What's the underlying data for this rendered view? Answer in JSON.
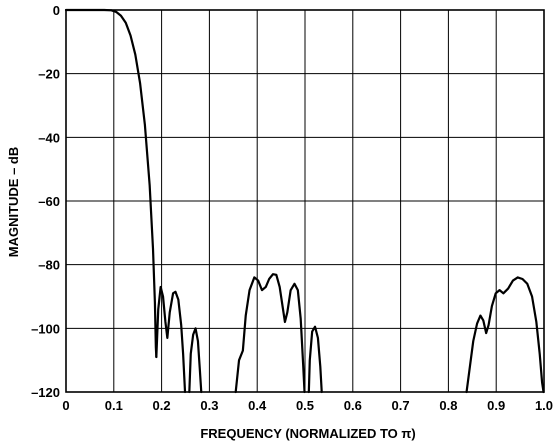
{
  "chart_data": {
    "type": "line",
    "title": "",
    "xlabel": "FREQUENCY (NORMALIZED TO π)",
    "ylabel": "MAGNITUDE – dB",
    "xlim": [
      0,
      1.0
    ],
    "ylim": [
      -120,
      0
    ],
    "xticks": [
      0,
      0.1,
      0.2,
      0.3,
      0.4,
      0.5,
      0.6,
      0.7,
      0.8,
      0.9,
      1.0
    ],
    "xtick_labels": [
      "0",
      "0.1",
      "0.2",
      "0.3",
      "0.4",
      "0.5",
      "0.6",
      "0.7",
      "0.8",
      "0.9",
      "1.0"
    ],
    "yticks": [
      0,
      -20,
      -40,
      -60,
      -80,
      -100,
      -120
    ],
    "ytick_labels": [
      "0",
      "–20",
      "–40",
      "–60",
      "–80",
      "–100",
      "–120"
    ],
    "grid": true,
    "series": [
      {
        "segments": [
          [
            [
              0,
              0
            ],
            [
              0.08,
              0
            ],
            [
              0.095,
              -0.1
            ],
            [
              0.105,
              -0.6
            ],
            [
              0.115,
              -1.8
            ],
            [
              0.125,
              -4
            ],
            [
              0.135,
              -8
            ],
            [
              0.145,
              -14
            ],
            [
              0.155,
              -23
            ],
            [
              0.165,
              -36
            ],
            [
              0.175,
              -55
            ],
            [
              0.182,
              -75
            ],
            [
              0.186,
              -92
            ],
            [
              0.188,
              -106
            ],
            [
              0.189,
              -109
            ]
          ],
          [
            [
              0.189,
              -109
            ],
            [
              0.193,
              -94
            ],
            [
              0.198,
              -87
            ],
            [
              0.203,
              -90
            ],
            [
              0.208,
              -98
            ],
            [
              0.212,
              -103
            ],
            [
              0.217,
              -95
            ],
            [
              0.224,
              -89
            ],
            [
              0.229,
              -88.5
            ],
            [
              0.235,
              -91
            ],
            [
              0.241,
              -99
            ],
            [
              0.245,
              -108
            ],
            [
              0.249,
              -120
            ]
          ],
          [
            [
              0.258,
              -120
            ],
            [
              0.261,
              -108
            ],
            [
              0.266,
              -102
            ],
            [
              0.271,
              -100
            ],
            [
              0.276,
              -104
            ],
            [
              0.28,
              -113
            ],
            [
              0.283,
              -120
            ]
          ],
          [
            [
              0.355,
              -120
            ],
            [
              0.362,
              -110
            ],
            [
              0.37,
              -107
            ],
            [
              0.376,
              -96
            ],
            [
              0.384,
              -88
            ],
            [
              0.394,
              -84
            ],
            [
              0.402,
              -85
            ],
            [
              0.41,
              -88
            ],
            [
              0.418,
              -87
            ],
            [
              0.425,
              -84.5
            ],
            [
              0.433,
              -83
            ],
            [
              0.44,
              -83.2
            ],
            [
              0.447,
              -87
            ],
            [
              0.453,
              -93
            ],
            [
              0.458,
              -98
            ],
            [
              0.463,
              -95
            ],
            [
              0.47,
              -88
            ],
            [
              0.478,
              -86
            ],
            [
              0.485,
              -88
            ],
            [
              0.491,
              -97
            ],
            [
              0.496,
              -111
            ],
            [
              0.499,
              -120
            ]
          ],
          [
            [
              0.508,
              -120
            ],
            [
              0.51,
              -110
            ],
            [
              0.515,
              -101
            ],
            [
              0.521,
              -99.5
            ],
            [
              0.527,
              -103
            ],
            [
              0.532,
              -112
            ],
            [
              0.535,
              -120
            ]
          ],
          [
            [
              0.838,
              -120
            ],
            [
              0.845,
              -112
            ],
            [
              0.852,
              -104
            ],
            [
              0.86,
              -98.5
            ],
            [
              0.867,
              -96
            ],
            [
              0.873,
              -97.5
            ],
            [
              0.879,
              -101.5
            ],
            [
              0.884,
              -99
            ],
            [
              0.891,
              -93
            ],
            [
              0.899,
              -89
            ],
            [
              0.907,
              -88
            ],
            [
              0.915,
              -89
            ],
            [
              0.925,
              -87.5
            ],
            [
              0.935,
              -85
            ],
            [
              0.945,
              -84
            ],
            [
              0.955,
              -84.5
            ],
            [
              0.965,
              -86
            ],
            [
              0.975,
              -90
            ],
            [
              0.984,
              -98
            ],
            [
              0.991,
              -108
            ],
            [
              0.996,
              -117
            ],
            [
              0.999,
              -120
            ]
          ]
        ]
      }
    ]
  }
}
